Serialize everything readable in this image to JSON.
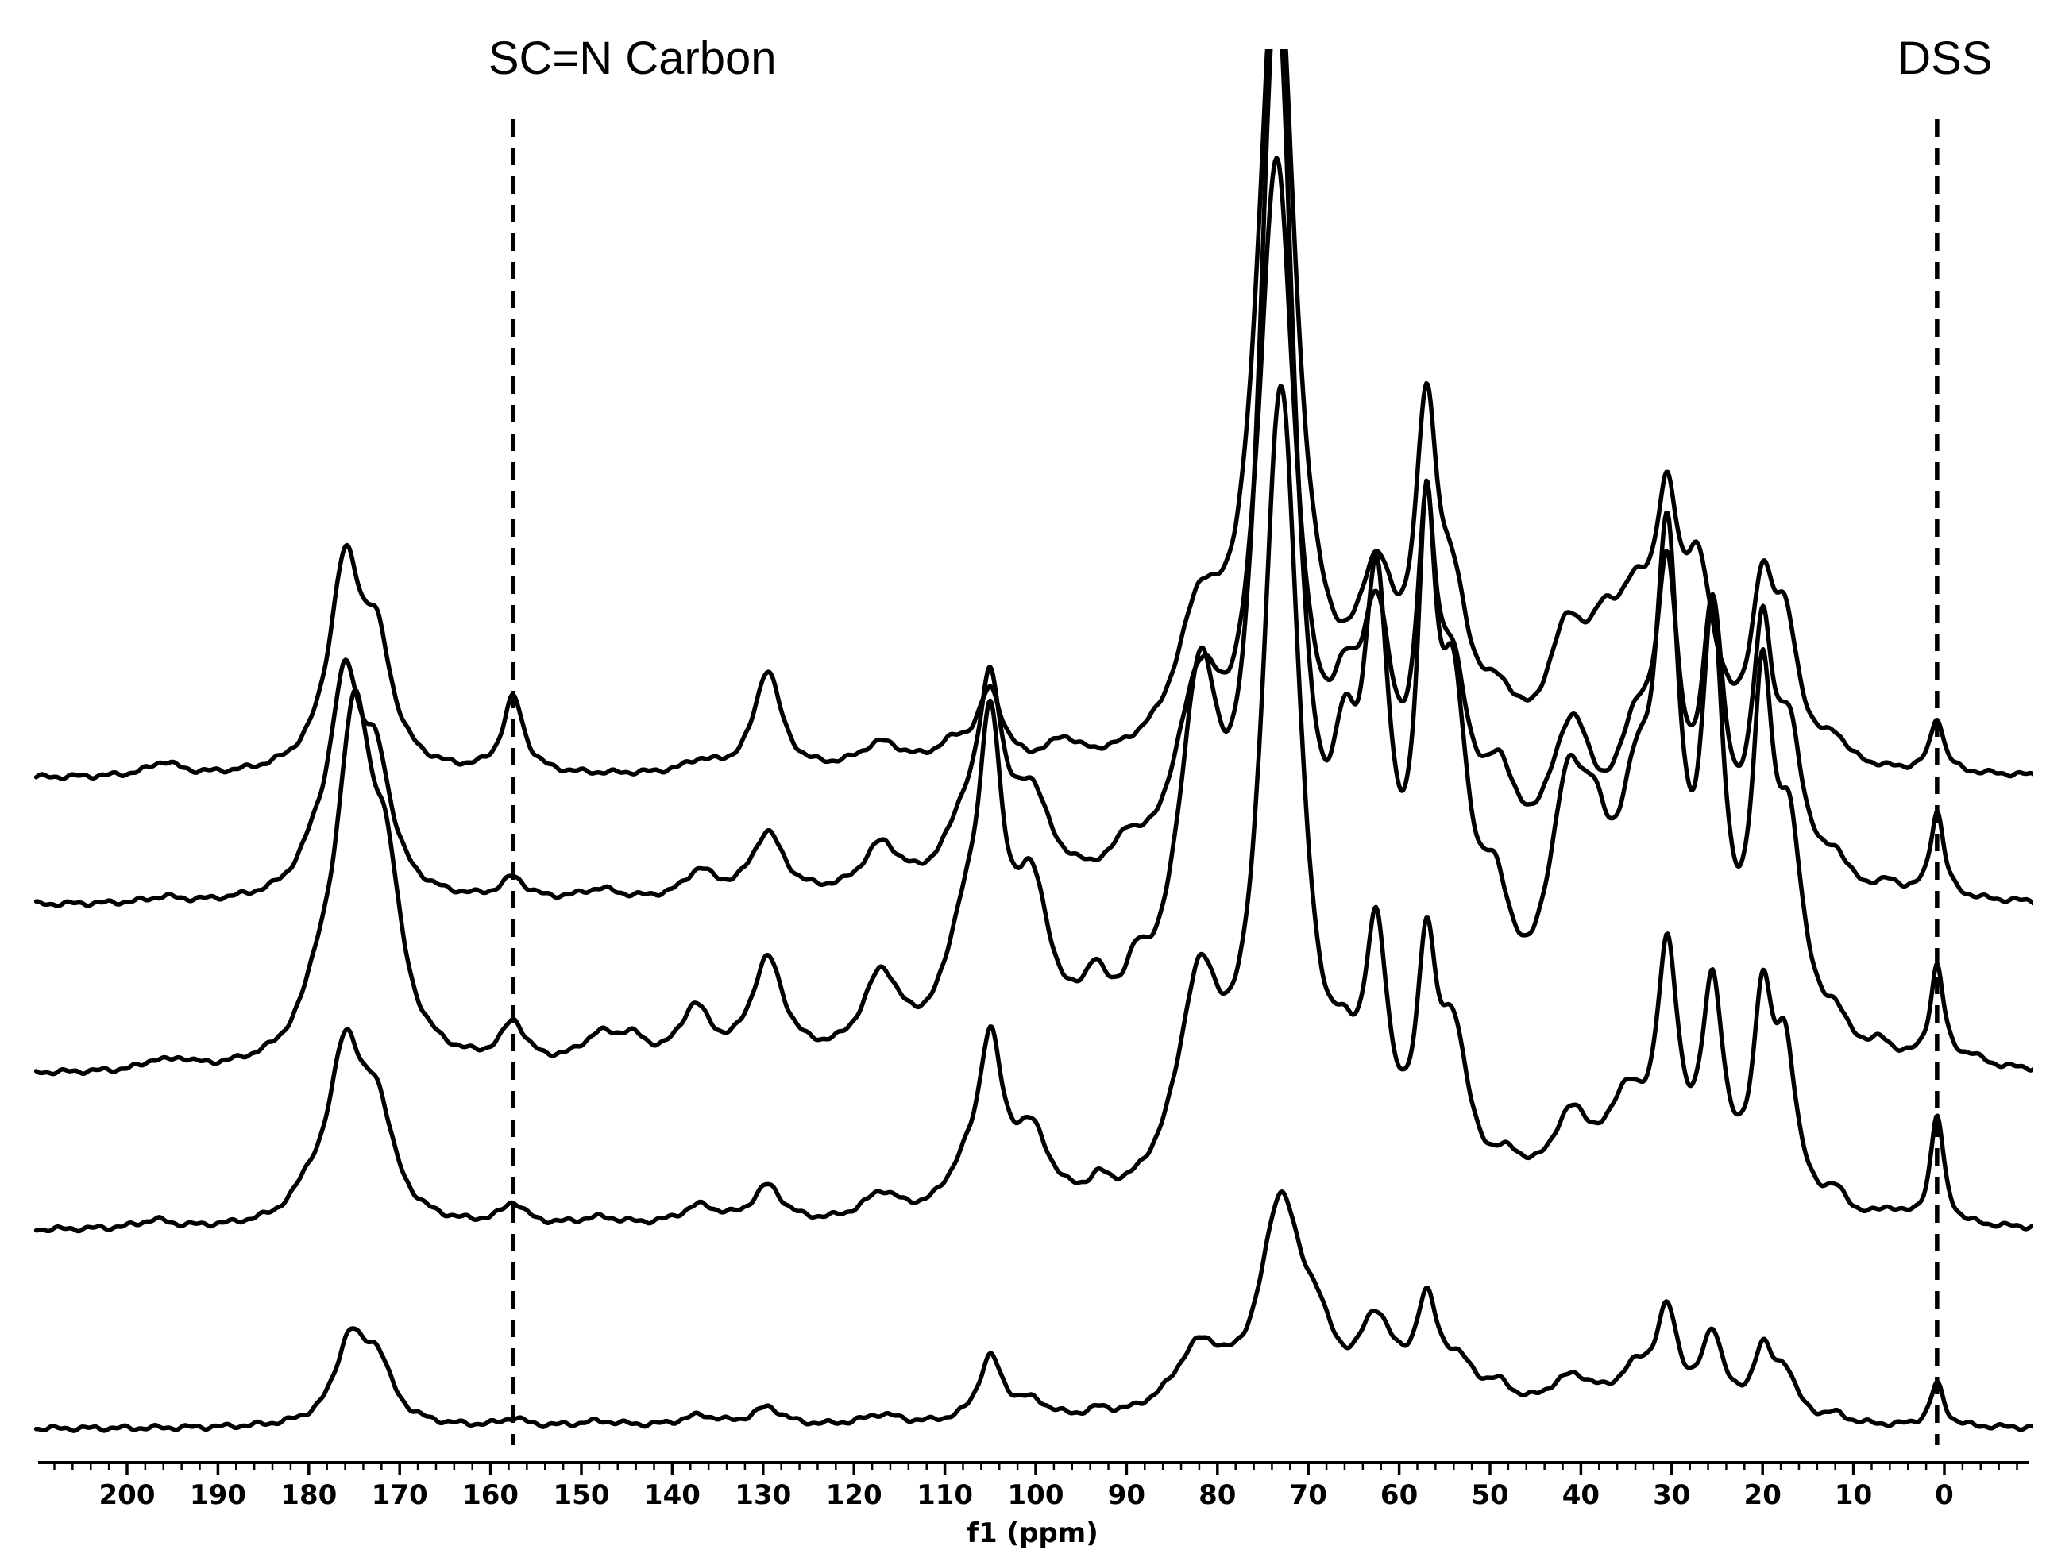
{
  "chart_data": {
    "type": "line",
    "title": "",
    "xlabel": "f1 (ppm)",
    "ylabel": "",
    "xlim": [
      210,
      -10
    ],
    "x_reversed": true,
    "grid": false,
    "legend": "none",
    "x_ticks": [
      200,
      190,
      180,
      170,
      160,
      150,
      140,
      130,
      120,
      110,
      100,
      90,
      80,
      70,
      60,
      50,
      40,
      30,
      20,
      10,
      0
    ],
    "x_tick_labels": [
      "200",
      "190",
      "180",
      "170",
      "160",
      "150",
      "140",
      "130",
      "120",
      "110",
      "100",
      "90",
      "80",
      "70",
      "60",
      "50",
      "40",
      "30",
      "20",
      "10",
      "0"
    ],
    "annotations": [
      {
        "text": "SC=N Carbon",
        "x": 157.5
      },
      {
        "text": "DSS",
        "x": 0.8
      }
    ],
    "stacked_offsets_relative": [
      0.0,
      0.7,
      1.25,
      1.85,
      2.3
    ],
    "series": [
      {
        "peaks": [
          {
            "x": 175.5,
            "h": 0.3,
            "w": 2.0
          },
          {
            "x": 172.5,
            "h": 0.22,
            "w": 2.0
          },
          {
            "x": 157.5,
            "h": 0.03,
            "w": 1.5
          },
          {
            "x": 148.0,
            "h": 0.02,
            "w": 3.0
          },
          {
            "x": 137.0,
            "h": 0.04,
            "w": 2.5
          },
          {
            "x": 129.5,
            "h": 0.07,
            "w": 2.0
          },
          {
            "x": 117.0,
            "h": 0.04,
            "w": 2.5
          },
          {
            "x": 105.0,
            "h": 0.24,
            "w": 1.6
          },
          {
            "x": 100.5,
            "h": 0.07,
            "w": 2.5
          },
          {
            "x": 93.0,
            "h": 0.03,
            "w": 1.5
          },
          {
            "x": 82.0,
            "h": 0.25,
            "w": 3.5
          },
          {
            "x": 73.0,
            "h": 0.78,
            "w": 2.8
          },
          {
            "x": 69.0,
            "h": 0.2,
            "w": 2.0
          },
          {
            "x": 62.5,
            "h": 0.32,
            "w": 2.5
          },
          {
            "x": 57.0,
            "h": 0.36,
            "w": 1.5
          },
          {
            "x": 53.5,
            "h": 0.16,
            "w": 2.5
          },
          {
            "x": 49.0,
            "h": 0.08,
            "w": 2.0
          },
          {
            "x": 41.0,
            "h": 0.15,
            "w": 3.5
          },
          {
            "x": 34.0,
            "h": 0.15,
            "w": 2.5
          },
          {
            "x": 30.5,
            "h": 0.36,
            "w": 1.5
          },
          {
            "x": 25.5,
            "h": 0.3,
            "w": 1.5
          },
          {
            "x": 20.0,
            "h": 0.24,
            "w": 1.4
          },
          {
            "x": 17.5,
            "h": 0.16,
            "w": 1.5
          },
          {
            "x": 12.0,
            "h": 0.03,
            "w": 1.5
          },
          {
            "x": 0.8,
            "h": 0.16,
            "w": 0.9
          }
        ]
      },
      {
        "peaks": [
          {
            "x": 176.0,
            "h": 0.62,
            "w": 2.2
          },
          {
            "x": 172.5,
            "h": 0.38,
            "w": 2.2
          },
          {
            "x": 180.0,
            "h": 0.08,
            "w": 2.0
          },
          {
            "x": 197.0,
            "h": 0.03,
            "w": 2.0
          },
          {
            "x": 157.5,
            "h": 0.08,
            "w": 1.6
          },
          {
            "x": 148.0,
            "h": 0.03,
            "w": 3.0
          },
          {
            "x": 137.0,
            "h": 0.07,
            "w": 2.5
          },
          {
            "x": 129.5,
            "h": 0.14,
            "w": 2.0
          },
          {
            "x": 117.0,
            "h": 0.1,
            "w": 2.5
          },
          {
            "x": 108.0,
            "h": 0.12,
            "w": 2.5
          },
          {
            "x": 105.0,
            "h": 0.6,
            "w": 1.6
          },
          {
            "x": 100.5,
            "h": 0.28,
            "w": 2.5
          },
          {
            "x": 93.0,
            "h": 0.07,
            "w": 1.5
          },
          {
            "x": 82.0,
            "h": 0.75,
            "w": 3.0
          },
          {
            "x": 73.0,
            "h": 3.0,
            "w": 2.6
          },
          {
            "x": 66.0,
            "h": 0.25,
            "w": 2.0
          },
          {
            "x": 62.5,
            "h": 0.85,
            "w": 1.6
          },
          {
            "x": 57.0,
            "h": 0.8,
            "w": 1.3
          },
          {
            "x": 54.0,
            "h": 0.55,
            "w": 2.0
          },
          {
            "x": 48.0,
            "h": 0.12,
            "w": 2.5
          },
          {
            "x": 41.0,
            "h": 0.32,
            "w": 3.0
          },
          {
            "x": 35.0,
            "h": 0.35,
            "w": 2.5
          },
          {
            "x": 30.5,
            "h": 0.88,
            "w": 1.5
          },
          {
            "x": 25.5,
            "h": 0.78,
            "w": 1.5
          },
          {
            "x": 20.0,
            "h": 0.72,
            "w": 1.3
          },
          {
            "x": 17.5,
            "h": 0.55,
            "w": 1.5
          },
          {
            "x": 12.0,
            "h": 0.08,
            "w": 1.5
          },
          {
            "x": 6.0,
            "h": 0.04,
            "w": 1.5
          },
          {
            "x": 0.8,
            "h": 0.4,
            "w": 0.9
          }
        ]
      },
      {
        "peaks": [
          {
            "x": 175.0,
            "h": 1.25,
            "w": 2.4
          },
          {
            "x": 171.5,
            "h": 0.55,
            "w": 2.0
          },
          {
            "x": 179.0,
            "h": 0.15,
            "w": 2.0
          },
          {
            "x": 197.0,
            "h": 0.03,
            "w": 1.5
          },
          {
            "x": 194.0,
            "h": 0.03,
            "w": 1.5
          },
          {
            "x": 157.5,
            "h": 0.15,
            "w": 1.6
          },
          {
            "x": 148.0,
            "h": 0.1,
            "w": 2.5
          },
          {
            "x": 144.5,
            "h": 0.08,
            "w": 2.0
          },
          {
            "x": 137.5,
            "h": 0.2,
            "w": 2.0
          },
          {
            "x": 129.5,
            "h": 0.38,
            "w": 2.2
          },
          {
            "x": 117.0,
            "h": 0.3,
            "w": 2.5
          },
          {
            "x": 108.0,
            "h": 0.35,
            "w": 2.5
          },
          {
            "x": 105.0,
            "h": 1.05,
            "w": 1.6
          },
          {
            "x": 100.5,
            "h": 0.55,
            "w": 2.5
          },
          {
            "x": 93.5,
            "h": 0.18,
            "w": 1.5
          },
          {
            "x": 89.0,
            "h": 0.15,
            "w": 1.5
          },
          {
            "x": 82.0,
            "h": 1.2,
            "w": 2.8
          },
          {
            "x": 73.5,
            "h": 3.8,
            "w": 2.5
          },
          {
            "x": 66.0,
            "h": 0.6,
            "w": 1.8
          },
          {
            "x": 62.5,
            "h": 1.4,
            "w": 1.8
          },
          {
            "x": 57.0,
            "h": 1.55,
            "w": 1.3
          },
          {
            "x": 54.0,
            "h": 1.05,
            "w": 2.0
          },
          {
            "x": 49.5,
            "h": 0.4,
            "w": 2.0
          },
          {
            "x": 41.5,
            "h": 0.8,
            "w": 2.5
          },
          {
            "x": 38.5,
            "h": 0.45,
            "w": 2.0
          },
          {
            "x": 34.0,
            "h": 0.7,
            "w": 2.5
          },
          {
            "x": 30.5,
            "h": 1.6,
            "w": 1.6
          },
          {
            "x": 25.5,
            "h": 1.4,
            "w": 1.5
          },
          {
            "x": 20.0,
            "h": 1.2,
            "w": 1.4
          },
          {
            "x": 17.0,
            "h": 0.7,
            "w": 1.8
          },
          {
            "x": 12.0,
            "h": 0.1,
            "w": 1.5
          },
          {
            "x": 7.0,
            "h": 0.05,
            "w": 1.5
          },
          {
            "x": 0.8,
            "h": 0.36,
            "w": 0.9
          },
          {
            "x": -3.0,
            "h": 0.03,
            "w": 1.5
          }
        ]
      },
      {
        "peaks": [
          {
            "x": 176.0,
            "h": 0.78,
            "w": 2.2
          },
          {
            "x": 172.5,
            "h": 0.4,
            "w": 2.0
          },
          {
            "x": 179.5,
            "h": 0.08,
            "w": 2.0
          },
          {
            "x": 196.0,
            "h": 0.02,
            "w": 2.0
          },
          {
            "x": 157.5,
            "h": 0.08,
            "w": 1.6
          },
          {
            "x": 148.0,
            "h": 0.04,
            "w": 2.5
          },
          {
            "x": 137.0,
            "h": 0.1,
            "w": 2.0
          },
          {
            "x": 129.5,
            "h": 0.24,
            "w": 2.2
          },
          {
            "x": 117.0,
            "h": 0.18,
            "w": 2.5
          },
          {
            "x": 108.0,
            "h": 0.2,
            "w": 2.5
          },
          {
            "x": 105.0,
            "h": 0.68,
            "w": 1.6
          },
          {
            "x": 100.5,
            "h": 0.32,
            "w": 2.5
          },
          {
            "x": 90.0,
            "h": 0.1,
            "w": 1.5
          },
          {
            "x": 82.0,
            "h": 0.65,
            "w": 3.2
          },
          {
            "x": 73.5,
            "h": 2.6,
            "w": 2.6
          },
          {
            "x": 66.0,
            "h": 0.35,
            "w": 2.0
          },
          {
            "x": 62.5,
            "h": 0.8,
            "w": 2.2
          },
          {
            "x": 57.0,
            "h": 1.1,
            "w": 1.3
          },
          {
            "x": 54.0,
            "h": 0.6,
            "w": 2.2
          },
          {
            "x": 49.0,
            "h": 0.3,
            "w": 2.0
          },
          {
            "x": 41.0,
            "h": 0.55,
            "w": 3.0
          },
          {
            "x": 34.0,
            "h": 0.45,
            "w": 2.5
          },
          {
            "x": 30.5,
            "h": 1.0,
            "w": 1.5
          },
          {
            "x": 25.5,
            "h": 0.92,
            "w": 1.5
          },
          {
            "x": 20.0,
            "h": 0.85,
            "w": 1.4
          },
          {
            "x": 17.0,
            "h": 0.5,
            "w": 1.8
          },
          {
            "x": 12.0,
            "h": 0.1,
            "w": 1.5
          },
          {
            "x": 6.0,
            "h": 0.04,
            "w": 1.5
          },
          {
            "x": 0.8,
            "h": 0.32,
            "w": 0.9
          }
        ]
      },
      {
        "peaks": [
          {
            "x": 176.0,
            "h": 0.75,
            "w": 2.2
          },
          {
            "x": 172.5,
            "h": 0.4,
            "w": 2.0
          },
          {
            "x": 196.0,
            "h": 0.05,
            "w": 2.0
          },
          {
            "x": 157.5,
            "h": 0.28,
            "w": 1.4
          },
          {
            "x": 137.0,
            "h": 0.04,
            "w": 2.0
          },
          {
            "x": 129.5,
            "h": 0.38,
            "w": 1.8
          },
          {
            "x": 117.0,
            "h": 0.1,
            "w": 3.0
          },
          {
            "x": 109.0,
            "h": 0.08,
            "w": 2.5
          },
          {
            "x": 105.0,
            "h": 0.27,
            "w": 1.6
          },
          {
            "x": 97.0,
            "h": 0.08,
            "w": 2.0
          },
          {
            "x": 82.0,
            "h": 0.45,
            "w": 3.0
          },
          {
            "x": 73.5,
            "h": 3.0,
            "w": 2.6
          },
          {
            "x": 62.5,
            "h": 0.55,
            "w": 2.5
          },
          {
            "x": 57.0,
            "h": 1.1,
            "w": 1.5
          },
          {
            "x": 54.0,
            "h": 0.45,
            "w": 2.2
          },
          {
            "x": 49.0,
            "h": 0.15,
            "w": 2.0
          },
          {
            "x": 41.5,
            "h": 0.42,
            "w": 2.5
          },
          {
            "x": 37.5,
            "h": 0.3,
            "w": 2.0
          },
          {
            "x": 34.0,
            "h": 0.45,
            "w": 2.5
          },
          {
            "x": 30.5,
            "h": 0.75,
            "w": 1.6
          },
          {
            "x": 27.0,
            "h": 0.6,
            "w": 2.0
          },
          {
            "x": 20.0,
            "h": 0.55,
            "w": 1.5
          },
          {
            "x": 17.5,
            "h": 0.45,
            "w": 1.8
          },
          {
            "x": 12.0,
            "h": 0.08,
            "w": 1.5
          },
          {
            "x": 0.8,
            "h": 0.2,
            "w": 0.9
          }
        ]
      }
    ]
  }
}
